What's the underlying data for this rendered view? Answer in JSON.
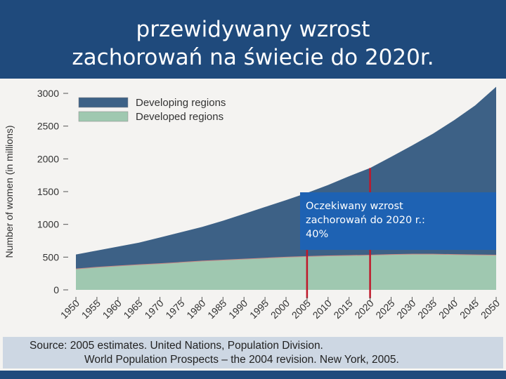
{
  "slide": {
    "title_line1": "przewidywany wzrost",
    "title_line2": "zachorowań na świecie do 2020r."
  },
  "callout": {
    "line1": "Oczekiwany wzrost",
    "line2": "zachorowań do 2020 r.:",
    "line3": "40%",
    "color": "#1e62b3"
  },
  "source": {
    "line1": "Source: 2005 estimates. United Nations, Population Division.",
    "line2": "World Population Prospects – the 2004 revision. New York, 2005."
  },
  "chart_data": {
    "type": "area",
    "stacked": true,
    "title": "",
    "xlabel": "",
    "ylabel": "Number of women (in millions)",
    "ylim": [
      0,
      3000
    ],
    "yticks": [
      0,
      500,
      1000,
      1500,
      2000,
      2500,
      3000
    ],
    "x": [
      1950,
      1955,
      1960,
      1965,
      1970,
      1975,
      1980,
      1985,
      1990,
      1995,
      2000,
      2005,
      2010,
      2015,
      2020,
      2025,
      2030,
      2035,
      2040,
      2045,
      2050
    ],
    "series": [
      {
        "name": "Developed regions",
        "color": "#9fc8b0",
        "values": [
          320,
          345,
          365,
          385,
          400,
          420,
          440,
          455,
          470,
          485,
          500,
          510,
          520,
          525,
          530,
          540,
          545,
          545,
          540,
          535,
          530
        ]
      },
      {
        "name": "Developing regions",
        "color": "#3d6186",
        "values": [
          220,
          255,
          295,
          335,
          400,
          460,
          520,
          600,
          690,
          780,
          870,
          970,
          1080,
          1210,
          1330,
          1490,
          1660,
          1840,
          2050,
          2280,
          2570
        ]
      }
    ],
    "markers": [
      2005,
      2020
    ],
    "marker_color": "#c0182a",
    "legend_position": "top-left",
    "grid": false
  }
}
